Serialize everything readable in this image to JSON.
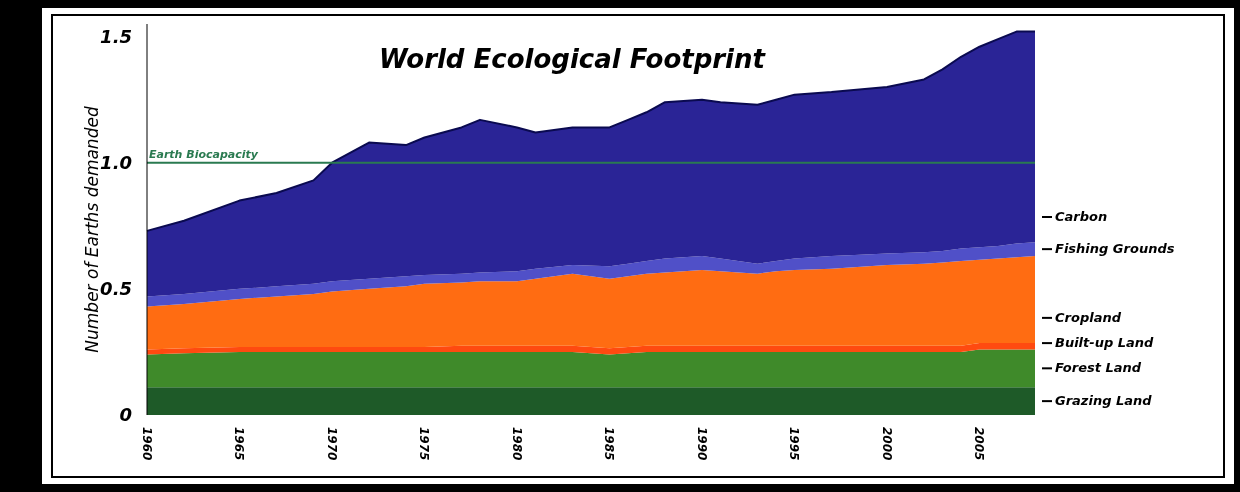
{
  "chart_data": {
    "type": "area",
    "stacked": true,
    "title": "World Ecological Footprint",
    "ylabel": "Number of Earths demanded",
    "x": [
      1960,
      1962,
      1965,
      1967,
      1969,
      1970,
      1972,
      1974,
      1975,
      1977,
      1978,
      1980,
      1981,
      1983,
      1985,
      1986,
      1987,
      1988,
      1990,
      1991,
      1993,
      1994,
      1995,
      1997,
      2000,
      2002,
      2003,
      2004,
      2005,
      2006,
      2007,
      2008
    ],
    "xlim": [
      1960,
      2008
    ],
    "xticks": [
      1960,
      1965,
      1970,
      1975,
      1980,
      1985,
      1990,
      1995,
      2000,
      2005
    ],
    "ylim": [
      0,
      1.55
    ],
    "yticks": [
      0,
      0.5,
      {
        "value": 1,
        "label": "1.0"
      },
      1.5
    ],
    "grid": false,
    "ref_lines": [
      {
        "axis": "y",
        "value": 1,
        "label": "Earth Biocapacity",
        "color": "#2a7a50"
      }
    ],
    "series": [
      {
        "name": "Grazing Land",
        "color": "#1e5a28",
        "values": [
          0.11,
          0.11,
          0.11,
          0.11,
          0.11,
          0.11,
          0.11,
          0.11,
          0.11,
          0.11,
          0.11,
          0.11,
          0.11,
          0.11,
          0.11,
          0.11,
          0.11,
          0.11,
          0.11,
          0.11,
          0.11,
          0.11,
          0.11,
          0.11,
          0.11,
          0.11,
          0.11,
          0.11,
          0.11,
          0.11,
          0.11,
          0.11
        ]
      },
      {
        "name": "Forest Land",
        "color": "#3f8a2a",
        "values": [
          0.13,
          0.135,
          0.14,
          0.14,
          0.14,
          0.14,
          0.14,
          0.14,
          0.14,
          0.14,
          0.14,
          0.14,
          0.14,
          0.14,
          0.13,
          0.135,
          0.14,
          0.14,
          0.14,
          0.14,
          0.14,
          0.14,
          0.14,
          0.14,
          0.14,
          0.14,
          0.14,
          0.14,
          0.15,
          0.15,
          0.15,
          0.15
        ]
      },
      {
        "name": "Built-up Land",
        "color": "#ff4a10",
        "values": [
          0.02,
          0.02,
          0.02,
          0.02,
          0.02,
          0.02,
          0.02,
          0.02,
          0.02,
          0.025,
          0.025,
          0.025,
          0.025,
          0.025,
          0.025,
          0.025,
          0.025,
          0.025,
          0.025,
          0.025,
          0.025,
          0.025,
          0.025,
          0.025,
          0.025,
          0.025,
          0.025,
          0.025,
          0.025,
          0.025,
          0.025,
          0.025
        ]
      },
      {
        "name": "Cropland",
        "color": "#ff6c12",
        "values": [
          0.17,
          0.175,
          0.19,
          0.2,
          0.21,
          0.22,
          0.23,
          0.24,
          0.25,
          0.25,
          0.255,
          0.255,
          0.265,
          0.285,
          0.275,
          0.28,
          0.285,
          0.29,
          0.3,
          0.295,
          0.285,
          0.295,
          0.3,
          0.305,
          0.32,
          0.325,
          0.33,
          0.335,
          0.33,
          0.335,
          0.34,
          0.345
        ]
      },
      {
        "name": "Fishing Grounds",
        "color": "#5050c8",
        "values": [
          0.04,
          0.04,
          0.04,
          0.04,
          0.04,
          0.04,
          0.04,
          0.04,
          0.035,
          0.035,
          0.035,
          0.04,
          0.04,
          0.035,
          0.05,
          0.05,
          0.05,
          0.055,
          0.055,
          0.05,
          0.04,
          0.04,
          0.045,
          0.05,
          0.045,
          0.045,
          0.045,
          0.05,
          0.05,
          0.05,
          0.055,
          0.055
        ]
      },
      {
        "name": "Carbon",
        "color": "#2a2496",
        "values": [
          0.26,
          0.29,
          0.35,
          0.37,
          0.41,
          0.47,
          0.54,
          0.52,
          0.545,
          0.58,
          0.605,
          0.57,
          0.54,
          0.545,
          0.55,
          0.57,
          0.59,
          0.62,
          0.62,
          0.62,
          0.63,
          0.64,
          0.65,
          0.65,
          0.66,
          0.685,
          0.72,
          0.76,
          0.795,
          0.82,
          0.84,
          0.835
        ]
      }
    ]
  }
}
